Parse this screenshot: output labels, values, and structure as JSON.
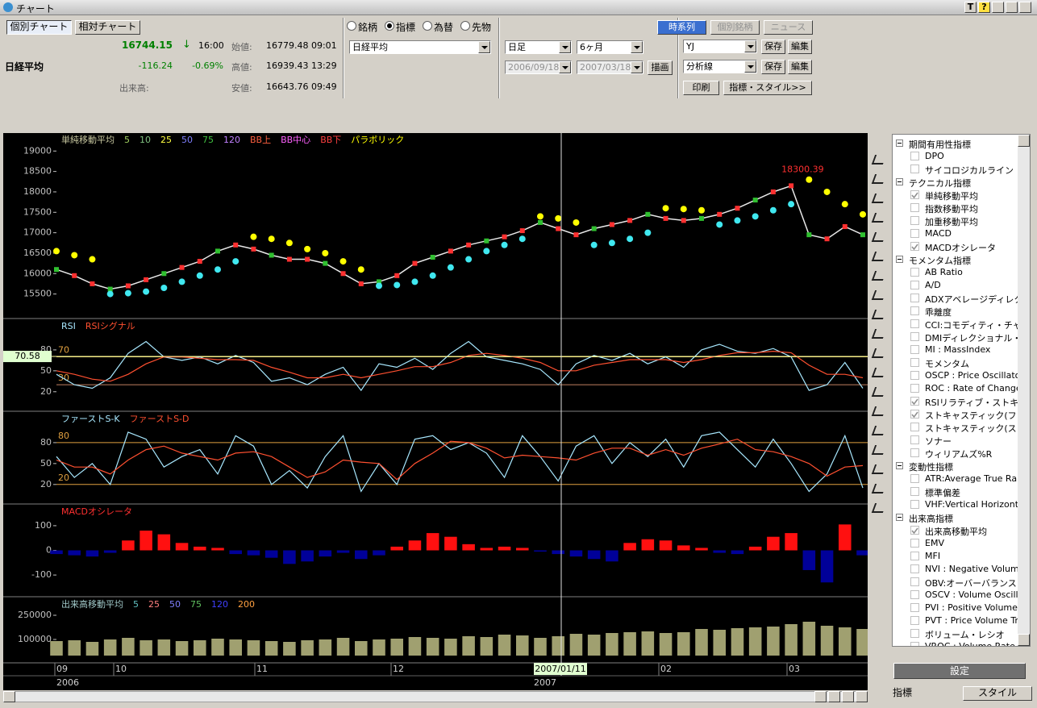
{
  "window": {
    "title": "チャート",
    "help_buttons": [
      "T",
      "?"
    ]
  },
  "tabs": {
    "items": [
      "個別チャート",
      "相対チャート"
    ],
    "active": 0
  },
  "quote": {
    "name": "日経平均",
    "price": "16744.15",
    "arrow": "↓",
    "time": "16:00",
    "change": "-116.24",
    "change_pct": "-0.69%",
    "volume_label": "出来高:",
    "open_label": "始値:",
    "open": "16779.48 09:01",
    "high_label": "高値:",
    "high": "16939.43 13:29",
    "low_label": "安値:",
    "low": "16643.76 09:49"
  },
  "source": {
    "options": [
      "銘柄",
      "指標",
      "為替",
      "先物"
    ],
    "selected": 1,
    "symbol": "日経平均"
  },
  "period": {
    "interval": "日足",
    "span": "6ヶ月",
    "from": "2006/09/18",
    "to": "2007/03/18",
    "draw_button": "描画"
  },
  "view": {
    "buttons": [
      "時系列",
      "個別銘柄",
      "ニュース"
    ],
    "active": 0,
    "preset": "YJ",
    "analysis": "分析線",
    "save": "保存",
    "edit": "編集",
    "print": "印刷",
    "indicators_button": "指標・スタイル>>"
  },
  "chart_data": [
    {
      "type": "price",
      "legend": [
        {
          "name": "単純移動平均",
          "color": "#c8c8a0"
        },
        {
          "name": "5",
          "color": "#a0d060"
        },
        {
          "name": "10",
          "color": "#80c080"
        },
        {
          "name": "25",
          "color": "#ffff40"
        },
        {
          "name": "50",
          "color": "#8080ff"
        },
        {
          "name": "75",
          "color": "#40c040"
        },
        {
          "name": "120",
          "color": "#c080ff"
        },
        {
          "name": "BB上",
          "color": "#ff6040"
        },
        {
          "name": "BB中心",
          "color": "#ff60ff"
        },
        {
          "name": "BB下",
          "color": "#ff4040"
        },
        {
          "name": "パラボリック",
          "color": "#ffff00"
        }
      ],
      "values": [
        16100,
        15950,
        15750,
        15620,
        15700,
        15850,
        16000,
        16150,
        16300,
        16550,
        16700,
        16600,
        16450,
        16350,
        16350,
        16250,
        16000,
        15750,
        15800,
        15950,
        16250,
        16400,
        16550,
        16700,
        16800,
        16900,
        17050,
        17250,
        17100,
        16950,
        17100,
        17200,
        17300,
        17450,
        17350,
        17300,
        17350,
        17450,
        17600,
        17800,
        18000,
        18150,
        16950,
        16850,
        17150,
        16950
      ],
      "color": "#e8e8e8",
      "sar_values": [
        16550,
        16450,
        16350,
        15500,
        15520,
        15560,
        15650,
        15800,
        15950,
        16100,
        16300,
        16900,
        16850,
        16750,
        16600,
        16500,
        16300,
        16100,
        15700,
        15720,
        15800,
        15950,
        16150,
        16350,
        16550,
        16700,
        16850,
        17400,
        17350,
        17250,
        16700,
        16750,
        16850,
        17000,
        17600,
        17580,
        17550,
        17200,
        17300,
        17400,
        17550,
        17700,
        18300,
        18000,
        17700,
        17450
      ],
      "sar_colors": {
        "above": "#ffff00",
        "below": "#40e8f0"
      },
      "annotation": "18300.39",
      "annotation_color": "#ff3030",
      "ylim": [
        14900,
        19440
      ],
      "yticks": [
        15500,
        16000,
        16500,
        17000,
        17500,
        18000,
        18500,
        19000
      ]
    },
    {
      "type": "line",
      "series": [
        {
          "name": "RSI",
          "color": "#a8e8ff",
          "values": [
            45,
            30,
            25,
            40,
            75,
            92,
            70,
            65,
            70,
            60,
            72,
            62,
            35,
            40,
            30,
            45,
            55,
            22,
            60,
            55,
            68,
            52,
            75,
            92,
            70,
            65,
            60,
            52,
            30,
            60,
            72,
            65,
            75,
            60,
            70,
            55,
            80,
            88,
            78,
            75,
            82,
            70,
            22,
            30,
            62,
            25
          ]
        },
        {
          "name": "RSIシグナル",
          "color": "#ff5030",
          "values": [
            50,
            45,
            38,
            35,
            45,
            60,
            70,
            70,
            68,
            66,
            66,
            65,
            55,
            48,
            40,
            40,
            45,
            40,
            45,
            50,
            56,
            56,
            62,
            72,
            75,
            72,
            68,
            62,
            50,
            50,
            58,
            62,
            66,
            66,
            66,
            62,
            66,
            72,
            76,
            76,
            78,
            76,
            58,
            45,
            45,
            40
          ]
        }
      ],
      "reference_lines": [
        {
          "value": 70,
          "color": "#e8d060"
        },
        {
          "value": 30,
          "color": "#c08060"
        }
      ],
      "reference_label_color": "#e0a040",
      "cursor_value": 70.58,
      "ylim": [
        -8,
        125
      ],
      "yticks": [
        20,
        50,
        80
      ]
    },
    {
      "type": "line",
      "series": [
        {
          "name": "ファーストS-K",
          "color": "#a8e8ff",
          "values": [
            60,
            30,
            50,
            20,
            95,
            85,
            45,
            60,
            70,
            35,
            90,
            75,
            20,
            40,
            15,
            60,
            90,
            10,
            50,
            20,
            85,
            90,
            70,
            80,
            65,
            30,
            90,
            60,
            25,
            75,
            90,
            50,
            80,
            60,
            85,
            45,
            90,
            95,
            70,
            45,
            85,
            50,
            10,
            35,
            90,
            15
          ]
        },
        {
          "name": "ファーストS-D",
          "color": "#ff5030",
          "values": [
            55,
            45,
            45,
            35,
            55,
            70,
            75,
            65,
            60,
            55,
            65,
            67,
            60,
            45,
            30,
            38,
            55,
            52,
            50,
            27,
            50,
            65,
            82,
            80,
            72,
            58,
            62,
            60,
            58,
            55,
            65,
            72,
            72,
            62,
            70,
            62,
            72,
            78,
            85,
            70,
            67,
            60,
            50,
            32,
            45,
            47
          ]
        }
      ],
      "reference_lines": [
        {
          "value": 80,
          "color": "#e0a040"
        },
        {
          "value": 20,
          "color": "#e0a040"
        }
      ],
      "reference_label_color": "#e0a040",
      "ylim": [
        -8,
        125
      ],
      "yticks": [
        20,
        50,
        80
      ]
    },
    {
      "type": "bar",
      "name": "MACDオシレータ",
      "name_color": "#ff3030",
      "color": "#ff1010",
      "negative_color": "#000099",
      "values": [
        -15,
        -20,
        -25,
        -10,
        40,
        80,
        65,
        30,
        15,
        10,
        -15,
        -20,
        -30,
        -55,
        -45,
        -25,
        -10,
        -35,
        -20,
        15,
        40,
        70,
        55,
        25,
        10,
        15,
        10,
        -5,
        -15,
        -25,
        -35,
        -45,
        30,
        45,
        40,
        20,
        10,
        -10,
        -15,
        15,
        55,
        70,
        -80,
        -130,
        105,
        -20
      ],
      "ylim": [
        -188,
        188
      ],
      "yticks": [
        -100,
        0,
        100
      ]
    },
    {
      "type": "bar",
      "legend": [
        {
          "name": "出来高移動平均",
          "color": "#a0c8c8"
        },
        {
          "name": "5",
          "color": "#60c0c0"
        },
        {
          "name": "25",
          "color": "#ff8080"
        },
        {
          "name": "50",
          "color": "#8080ff"
        },
        {
          "name": "75",
          "color": "#60c060"
        },
        {
          "name": "120",
          "color": "#4040ff"
        },
        {
          "name": "200",
          "color": "#ffa040"
        }
      ],
      "color": "#a0a070",
      "values": [
        90000,
        95000,
        85000,
        100000,
        110000,
        95000,
        100000,
        90000,
        95000,
        105000,
        100000,
        95000,
        90000,
        85000,
        95000,
        100000,
        110000,
        90000,
        100000,
        105000,
        115000,
        110000,
        105000,
        120000,
        115000,
        130000,
        125000,
        110000,
        120000,
        135000,
        130000,
        140000,
        145000,
        150000,
        140000,
        145000,
        165000,
        160000,
        170000,
        175000,
        180000,
        195000,
        210000,
        185000,
        175000,
        165000
      ],
      "ylim": [
        -45000,
        365000
      ],
      "yticks": [
        100000,
        250000
      ]
    }
  ],
  "date_axis": {
    "months": [
      "09",
      "10",
      "11",
      "12",
      "02",
      "03"
    ],
    "years": [
      "2006",
      "2007"
    ],
    "cursor_date": "2007/01/11"
  },
  "sidebar": {
    "groups": [
      {
        "name": "期間有用性指標",
        "items": [
          {
            "label": "DPO",
            "checked": false
          },
          {
            "label": "サイコロジカルライン",
            "checked": false
          }
        ]
      },
      {
        "name": "テクニカル指標",
        "items": [
          {
            "label": "単純移動平均",
            "checked": true
          },
          {
            "label": "指数移動平均",
            "checked": false
          },
          {
            "label": "加重移動平均",
            "checked": false
          },
          {
            "label": "MACD",
            "checked": false
          },
          {
            "label": "MACDオシレータ",
            "checked": true
          }
        ]
      },
      {
        "name": "モメンタム指標",
        "items": [
          {
            "label": "AB Ratio",
            "checked": false
          },
          {
            "label": "A/D",
            "checked": false
          },
          {
            "label": "ADXアベレージディレク",
            "checked": false
          },
          {
            "label": "乖離度",
            "checked": false
          },
          {
            "label": "CCI:コモディティ・チャ",
            "checked": false
          },
          {
            "label": "DMIディレクショナル・ム",
            "checked": false
          },
          {
            "label": "MI : MassIndex",
            "checked": false
          },
          {
            "label": "モメンタム",
            "checked": false
          },
          {
            "label": "OSCP : Price Oscillato",
            "checked": false
          },
          {
            "label": "ROC : Rate of Change",
            "checked": false
          },
          {
            "label": "RSIリラティブ・ストキャ",
            "checked": true
          },
          {
            "label": "ストキャスティック(ファ",
            "checked": true
          },
          {
            "label": "ストキャスティック(スロ",
            "checked": false
          },
          {
            "label": "ソナー",
            "checked": false
          },
          {
            "label": "ウィリアムズ%R",
            "checked": false
          }
        ]
      },
      {
        "name": "変動性指標",
        "items": [
          {
            "label": "ATR:Average True Ra",
            "checked": false
          },
          {
            "label": "標準偏差",
            "checked": false
          },
          {
            "label": "VHF:Vertical Horizonta",
            "checked": false
          }
        ]
      },
      {
        "name": "出来高指標",
        "items": [
          {
            "label": "出来高移動平均",
            "checked": true
          },
          {
            "label": "EMV",
            "checked": false
          },
          {
            "label": "MFI",
            "checked": false
          },
          {
            "label": "NVI : Negative Volume",
            "checked": false
          },
          {
            "label": "OBV:オーバーバランス・",
            "checked": false
          },
          {
            "label": "OSCV : Volume Oscill",
            "checked": false
          },
          {
            "label": "PVI : Positive Volume",
            "checked": false
          },
          {
            "label": "PVT : Price Volume Tr",
            "checked": false
          },
          {
            "label": "ボリューム・レシオ",
            "checked": false
          },
          {
            "label": "VROC : Volume Rate",
            "checked": false
          }
        ]
      }
    ],
    "settings_button": "設定",
    "tabs": [
      "指標",
      "スタイル"
    ],
    "active_tab": 0
  }
}
